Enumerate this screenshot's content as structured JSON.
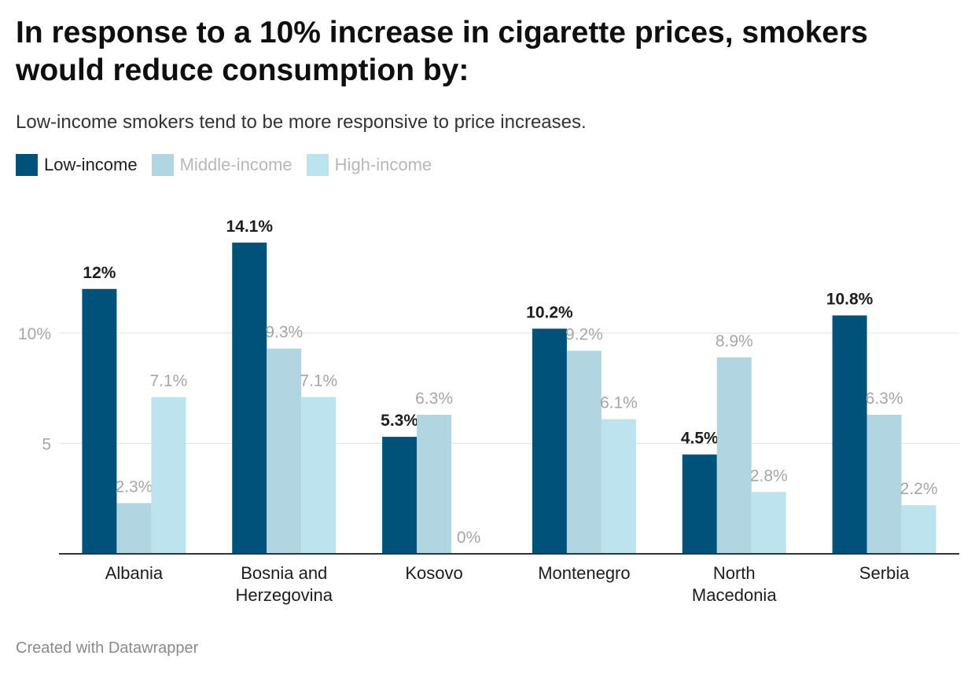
{
  "title": "In response to a 10% increase in cigarette prices, smokers would reduce consumption by:",
  "subtitle": "Low-income smokers tend to be more responsive to price increases.",
  "footer": "Created with Datawrapper",
  "legend": [
    {
      "label": "Low-income",
      "color": "#00527a",
      "text_color": "#1d1d1d"
    },
    {
      "label": "Middle-income",
      "color": "#b2d6e1",
      "text_color": "#b8b8b8"
    },
    {
      "label": "High-income",
      "color": "#bde3ee",
      "text_color": "#b8b8b8"
    }
  ],
  "chart_data": {
    "type": "bar",
    "categories": [
      [
        "Albania"
      ],
      [
        "Bosnia and",
        "Herzegovina"
      ],
      [
        "Kosovo"
      ],
      [
        "Montenegro"
      ],
      [
        "North",
        "Macedonia"
      ],
      [
        "Serbia"
      ]
    ],
    "series": [
      {
        "name": "Low-income",
        "values": [
          12,
          14.1,
          5.3,
          10.2,
          4.5,
          10.8
        ],
        "labels": [
          "12%",
          "14.1%",
          "5.3%",
          "10.2%",
          "4.5%",
          "10.8%"
        ],
        "color": "#00527a",
        "label_color": "#1d1d1d",
        "label_bold": true
      },
      {
        "name": "Middle-income",
        "values": [
          2.3,
          9.3,
          6.3,
          9.2,
          8.9,
          6.3
        ],
        "labels": [
          "2.3%",
          "9.3%",
          "6.3%",
          "9.2%",
          "8.9%",
          "6.3%"
        ],
        "color": "#b2d6e1",
        "label_color": "#a6a6a6",
        "label_bold": false
      },
      {
        "name": "High-income",
        "values": [
          7.1,
          7.1,
          0,
          6.1,
          2.8,
          2.2
        ],
        "labels": [
          "7.1%",
          "7.1%",
          "0%",
          "6.1%",
          "2.8%",
          "2.2%"
        ],
        "color": "#bde3ee",
        "label_color": "#a6a6a6",
        "label_bold": false
      }
    ],
    "y_ticks": [
      {
        "value": 5,
        "label": "5"
      },
      {
        "value": 10,
        "label": "10%"
      }
    ],
    "ylim": [
      0,
      15
    ],
    "grid": true,
    "legend_position": "top-left"
  }
}
